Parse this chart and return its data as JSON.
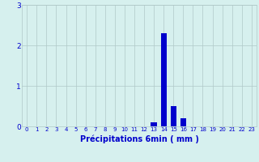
{
  "hours": [
    0,
    1,
    2,
    3,
    4,
    5,
    6,
    7,
    8,
    9,
    10,
    11,
    12,
    13,
    14,
    15,
    16,
    17,
    18,
    19,
    20,
    21,
    22,
    23
  ],
  "values": [
    0,
    0,
    0,
    0,
    0,
    0,
    0,
    0,
    0,
    0,
    0,
    0,
    0,
    0.1,
    2.3,
    0.5,
    0.2,
    0,
    0,
    0,
    0,
    0,
    0,
    0
  ],
  "bar_color": "#0000cc",
  "bg_color": "#d6f0ee",
  "grid_color": "#b0c8c8",
  "xlabel": "Précipitations 6min ( mm )",
  "ylim": [
    0,
    3
  ],
  "yticks": [
    0,
    1,
    2,
    3
  ],
  "tick_color": "#0000cc",
  "xlabel_color": "#0000cc"
}
